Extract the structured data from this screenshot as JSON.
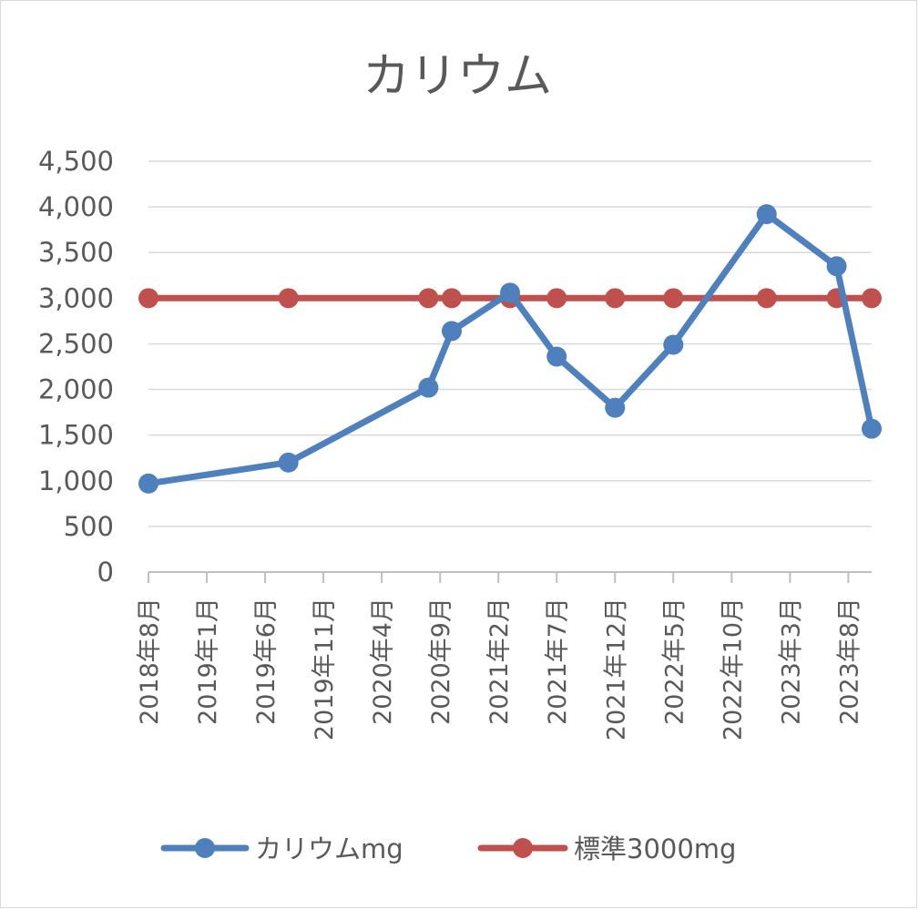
{
  "chart_data": {
    "type": "line",
    "title": "カリウム",
    "xlabel": "",
    "ylabel": "",
    "ylim": [
      0,
      4500
    ],
    "yticks": [
      0,
      500,
      1000,
      1500,
      2000,
      2500,
      3000,
      3500,
      4000,
      4500
    ],
    "ytick_labels": [
      "0",
      "500",
      "1,000",
      "1,500",
      "2,000",
      "2,500",
      "3,000",
      "3,500",
      "4,000",
      "4,500"
    ],
    "x_axis": {
      "type": "date",
      "min": "2018-08",
      "max": "2023-10",
      "tick_dates": [
        "2018-08",
        "2019-01",
        "2019-06",
        "2019-11",
        "2020-04",
        "2020-09",
        "2021-02",
        "2021-07",
        "2021-12",
        "2022-05",
        "2022-10",
        "2023-03",
        "2023-08"
      ],
      "tick_labels": [
        "2018年8月",
        "2019年1月",
        "2019年6月",
        "2019年11月",
        "2020年4月",
        "2020年9月",
        "2021年2月",
        "2021年7月",
        "2021年12月",
        "2022年5月",
        "2022年10月",
        "2023年3月",
        "2023年8月"
      ]
    },
    "grid": true,
    "legend": "bottom",
    "series": [
      {
        "name": "カリウムmg",
        "color": "#4e80bd",
        "points": [
          {
            "x": "2018-08",
            "y": 970
          },
          {
            "x": "2019-08",
            "y": 1200
          },
          {
            "x": "2020-08",
            "y": 2020
          },
          {
            "x": "2020-10",
            "y": 2640
          },
          {
            "x": "2021-03",
            "y": 3060
          },
          {
            "x": "2021-07",
            "y": 2360
          },
          {
            "x": "2021-12",
            "y": 1800
          },
          {
            "x": "2022-05",
            "y": 2490
          },
          {
            "x": "2023-01",
            "y": 3920
          },
          {
            "x": "2023-07",
            "y": 3350
          },
          {
            "x": "2023-10",
            "y": 1570
          }
        ]
      },
      {
        "name": "標準3000mg",
        "color": "#c0504d",
        "points": [
          {
            "x": "2018-08",
            "y": 3000
          },
          {
            "x": "2019-08",
            "y": 3000
          },
          {
            "x": "2020-08",
            "y": 3000
          },
          {
            "x": "2020-10",
            "y": 3000
          },
          {
            "x": "2021-03",
            "y": 3000
          },
          {
            "x": "2021-07",
            "y": 3000
          },
          {
            "x": "2021-12",
            "y": 3000
          },
          {
            "x": "2022-05",
            "y": 3000
          },
          {
            "x": "2023-01",
            "y": 3000
          },
          {
            "x": "2023-07",
            "y": 3000
          },
          {
            "x": "2023-10",
            "y": 3000
          }
        ]
      }
    ]
  }
}
